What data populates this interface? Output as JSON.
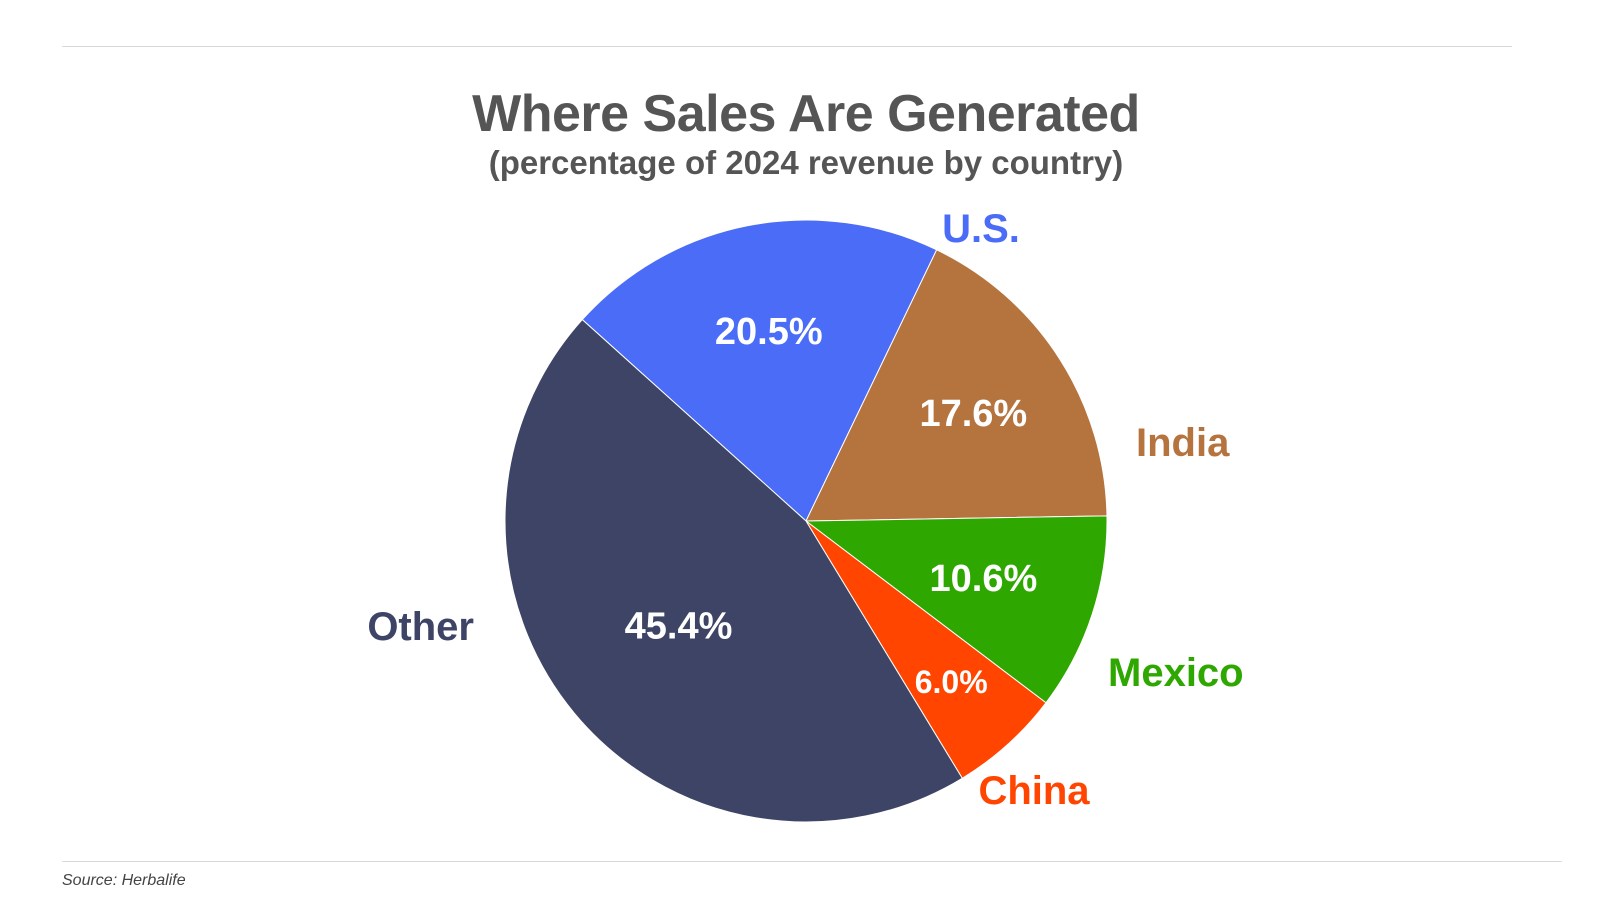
{
  "chart_data": {
    "type": "pie",
    "title": "Where Sales Are Generated",
    "subtitle": "(percentage of 2024 revenue by country)",
    "slices": [
      {
        "name": "U.S.",
        "value": 20.5,
        "label": "20.5%",
        "color": "#4a6cf7"
      },
      {
        "name": "India",
        "value": 17.6,
        "label": "17.6%",
        "color": "#b5733e"
      },
      {
        "name": "Mexico",
        "value": 10.6,
        "label": "10.6%",
        "color": "#2ea800"
      },
      {
        "name": "China",
        "value": 6.0,
        "label": "6.0%",
        "color": "#ff4500"
      },
      {
        "name": "Other",
        "value": 45.4,
        "label": "45.4%",
        "color": "#3d4466"
      }
    ],
    "start_direction": "upper-left, clockwise from U.S.",
    "legend": "none (category names placed beside slices)"
  },
  "source": "Source: Herbalife"
}
